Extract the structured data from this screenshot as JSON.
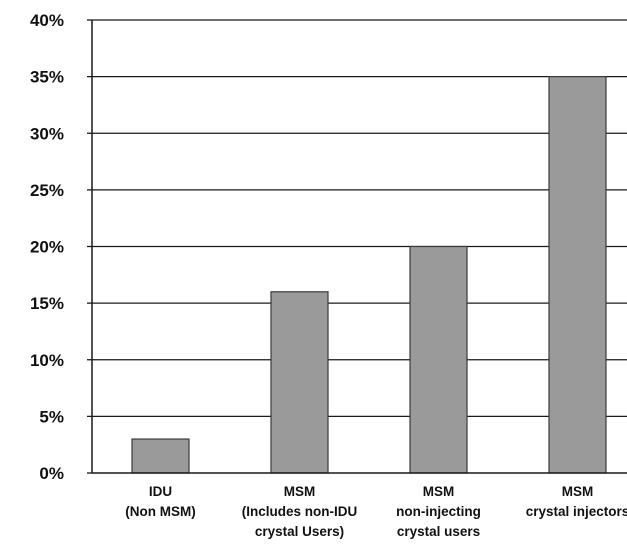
{
  "chart_data": {
    "type": "bar",
    "title": "",
    "xlabel": "",
    "ylabel": "",
    "ylim": [
      0,
      40
    ],
    "grid": true,
    "y_ticks": [
      "0%",
      "5%",
      "10%",
      "15%",
      "20%",
      "25%",
      "30%",
      "35%",
      "40%"
    ],
    "categories": [
      [
        "IDU",
        "(Non MSM)"
      ],
      [
        "MSM",
        "(Includes non-IDU",
        "crystal Users)"
      ],
      [
        "MSM",
        "non-injecting",
        "crystal users"
      ],
      [
        "MSM",
        "crystal injectors"
      ]
    ],
    "values": [
      3,
      16,
      20,
      35
    ],
    "colors": {
      "bar_fill": "#9a9a9a",
      "bar_stroke": "#3a3a3a",
      "gridline": "#1a1a1a",
      "axis": "#1a1a1a",
      "text": "#111111"
    }
  }
}
